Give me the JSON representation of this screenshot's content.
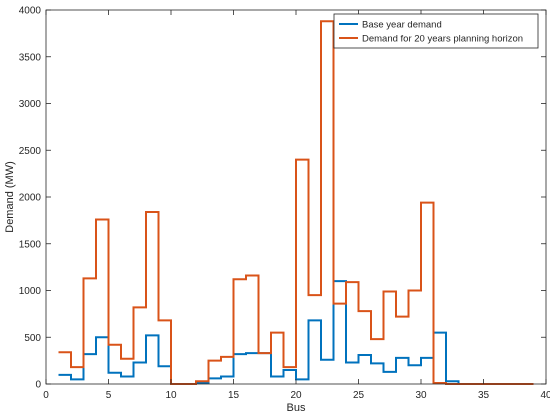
{
  "chart_data": {
    "type": "line",
    "style": "stairs",
    "title": "",
    "xlabel": "Bus",
    "ylabel": "Demand (MW)",
    "xlim": [
      0,
      40
    ],
    "ylim": [
      0,
      4000
    ],
    "xticks": [
      0,
      5,
      10,
      15,
      20,
      25,
      30,
      35,
      40
    ],
    "yticks": [
      0,
      500,
      1000,
      1500,
      2000,
      2500,
      3000,
      3500,
      4000
    ],
    "grid": false,
    "legend_position": "top-right",
    "x": [
      1,
      2,
      3,
      4,
      5,
      6,
      7,
      8,
      9,
      10,
      11,
      12,
      13,
      14,
      15,
      16,
      17,
      18,
      19,
      20,
      21,
      22,
      23,
      24,
      25,
      26,
      27,
      28,
      29,
      30,
      31,
      32,
      33,
      34,
      35,
      36,
      37,
      38,
      39
    ],
    "series": [
      {
        "name": "Base year demand",
        "color": "#0072BD",
        "values": [
          97,
          50,
          320,
          500,
          120,
          80,
          230,
          520,
          190,
          0,
          0,
          10,
          60,
          80,
          320,
          330,
          330,
          80,
          150,
          50,
          680,
          260,
          1100,
          230,
          310,
          220,
          130,
          280,
          200,
          280,
          550,
          30,
          0,
          0,
          0,
          0,
          0,
          0,
          0
        ]
      },
      {
        "name": "Demand for 20 years planning horizon",
        "color": "#D95319",
        "values": [
          340,
          180,
          1130,
          1760,
          420,
          270,
          820,
          1840,
          680,
          0,
          0,
          30,
          250,
          290,
          1120,
          1160,
          330,
          550,
          180,
          2400,
          950,
          3880,
          860,
          1090,
          780,
          480,
          990,
          720,
          1000,
          1940,
          10,
          0,
          0,
          0,
          0,
          0,
          0,
          0,
          0
        ]
      }
    ]
  }
}
